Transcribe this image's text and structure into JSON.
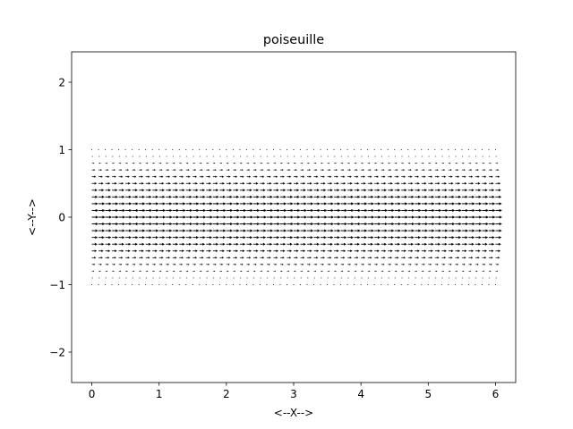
{
  "chart_data": {
    "type": "quiver",
    "title": "poiseuille",
    "xlabel": "<--X-->",
    "ylabel": "<--Y-->",
    "xlim": [
      -0.3,
      6.3
    ],
    "ylim": [
      -2.45,
      2.45
    ],
    "xticks": [
      "0",
      "1",
      "2",
      "3",
      "4",
      "5",
      "6"
    ],
    "yticks": [
      "2",
      "1",
      "0",
      "−1",
      "−2"
    ],
    "grid": false,
    "legend": "none",
    "field": {
      "x_start": 0.0,
      "x_end": 6.0,
      "x_count": 61,
      "y_start": -1.0,
      "y_end": 1.0,
      "y_count": 21,
      "velocity_u": "1 - y^2",
      "velocity_v": 0,
      "max_arrow_length": 0.1,
      "color": "#000000"
    }
  }
}
